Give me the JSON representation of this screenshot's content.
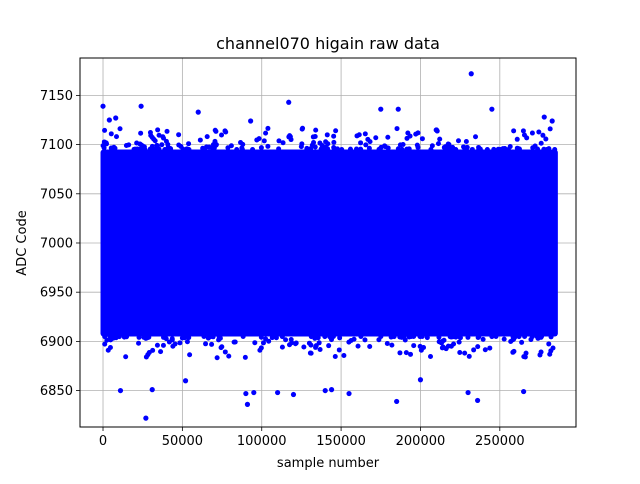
{
  "chart_data": {
    "type": "scatter",
    "title": "channel070 higain raw data",
    "xlabel": "sample number",
    "ylabel": "ADC Code",
    "xlim": [
      -14500,
      298000
    ],
    "ylim": [
      6813,
      7188
    ],
    "x_ticks": [
      0,
      50000,
      100000,
      150000,
      200000,
      250000
    ],
    "x_tick_labels": [
      "0",
      "50000",
      "100000",
      "150000",
      "200000",
      "250000"
    ],
    "y_ticks": [
      6850,
      6900,
      6950,
      7000,
      7050,
      7100,
      7150
    ],
    "y_tick_labels": [
      "6850",
      "6900",
      "6950",
      "7000",
      "7050",
      "7100",
      "7150"
    ],
    "grid": true,
    "marker_color": "#0000ff",
    "series": [
      {
        "x_range": [
          0,
          285000
        ],
        "band": [
          6905,
          7095
        ],
        "outliers": [
          [
            0,
            7139
          ],
          [
            4000,
            7125
          ],
          [
            8000,
            7127
          ],
          [
            11000,
            6850
          ],
          [
            24000,
            7139
          ],
          [
            27000,
            6822
          ],
          [
            31000,
            6851
          ],
          [
            60000,
            7133
          ],
          [
            90000,
            6847
          ],
          [
            91000,
            6836
          ],
          [
            95000,
            6848
          ],
          [
            93000,
            7124
          ],
          [
            117000,
            7143
          ],
          [
            140000,
            6850
          ],
          [
            144000,
            6851
          ],
          [
            155000,
            6847
          ],
          [
            175000,
            7136
          ],
          [
            186000,
            7136
          ],
          [
            185000,
            6839
          ],
          [
            232000,
            7172
          ],
          [
            236000,
            6840
          ],
          [
            230000,
            6848
          ],
          [
            245000,
            7136
          ],
          [
            265000,
            6849
          ],
          [
            278000,
            7128
          ],
          [
            283000,
            7124
          ],
          [
            120000,
            6846
          ],
          [
            110000,
            6848
          ],
          [
            200000,
            6861
          ],
          [
            52000,
            6860
          ]
        ]
      }
    ]
  }
}
